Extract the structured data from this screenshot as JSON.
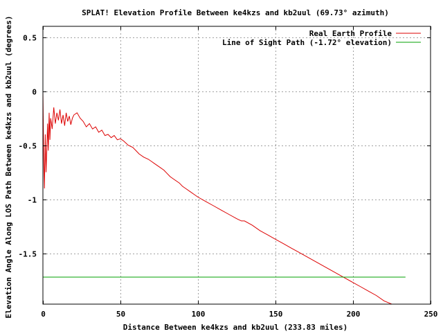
{
  "chart_data": {
    "type": "line",
    "title": "SPLAT! Elevation Profile Between ke4kzs and kb2uul (69.73° azimuth)",
    "xlabel": "Distance Between ke4kzs and kb2uul (233.83 miles)",
    "ylabel": "Elevation Angle Along LOS Path Between ke4kzs and kb2uul (degrees)",
    "xlim": [
      0,
      250
    ],
    "ylim": [
      -1.97,
      0.6
    ],
    "x_ticks": [
      0,
      50,
      100,
      150,
      200,
      250
    ],
    "x_tick_labels": [
      "0",
      "50",
      "100",
      "150",
      "200",
      "250"
    ],
    "y_ticks": [
      0.5,
      0,
      -0.5,
      -1,
      -1.5
    ],
    "y_tick_labels": [
      "0.5",
      "0",
      "-0.5",
      "-1",
      "-1.5"
    ],
    "grid": true,
    "legend_position": "top-right",
    "series": [
      {
        "name": "Real Earth Profile",
        "color": "#dd0000",
        "x": [
          0,
          0.5,
          1,
          1.5,
          2,
          2.5,
          3,
          3.5,
          4,
          4.5,
          5,
          6,
          7,
          8,
          9,
          10,
          11,
          12,
          13,
          14,
          15,
          16,
          17,
          18,
          19,
          20,
          22,
          24,
          26,
          28,
          30,
          32,
          34,
          36,
          38,
          40,
          42,
          44,
          46,
          48,
          50,
          52,
          55,
          58,
          60,
          62,
          65,
          68,
          70,
          72,
          75,
          78,
          80,
          82,
          85,
          88,
          90,
          92,
          95,
          98,
          100,
          105,
          110,
          115,
          120,
          125,
          128,
          130,
          135,
          140,
          145,
          150,
          155,
          160,
          165,
          170,
          175,
          180,
          185,
          190,
          195,
          200,
          205,
          210,
          215,
          220,
          225,
          230,
          233.83
        ],
        "y": [
          0.0,
          -0.6,
          -0.9,
          -0.4,
          -0.75,
          -0.55,
          -0.3,
          -0.55,
          -0.2,
          -0.45,
          -0.25,
          -0.35,
          -0.15,
          -0.3,
          -0.2,
          -0.27,
          -0.17,
          -0.3,
          -0.22,
          -0.32,
          -0.2,
          -0.28,
          -0.23,
          -0.31,
          -0.25,
          -0.22,
          -0.2,
          -0.25,
          -0.28,
          -0.33,
          -0.3,
          -0.35,
          -0.33,
          -0.38,
          -0.36,
          -0.41,
          -0.4,
          -0.43,
          -0.41,
          -0.45,
          -0.44,
          -0.46,
          -0.5,
          -0.52,
          -0.55,
          -0.58,
          -0.61,
          -0.63,
          -0.65,
          -0.67,
          -0.7,
          -0.73,
          -0.76,
          -0.79,
          -0.82,
          -0.85,
          -0.88,
          -0.9,
          -0.93,
          -0.96,
          -0.98,
          -1.02,
          -1.06,
          -1.1,
          -1.14,
          -1.18,
          -1.2,
          -1.2,
          -1.24,
          -1.29,
          -1.33,
          -1.37,
          -1.41,
          -1.45,
          -1.49,
          -1.53,
          -1.57,
          -1.61,
          -1.65,
          -1.69,
          -1.73,
          -1.77,
          -1.81,
          -1.85,
          -1.89,
          -1.94,
          -1.98,
          -2.03,
          -2.07
        ]
      },
      {
        "name": "Line of Sight Path (-1.72° elevation)",
        "color": "#00a000",
        "x": [
          0,
          233.83
        ],
        "y": [
          -1.72,
          -1.72
        ]
      }
    ]
  }
}
